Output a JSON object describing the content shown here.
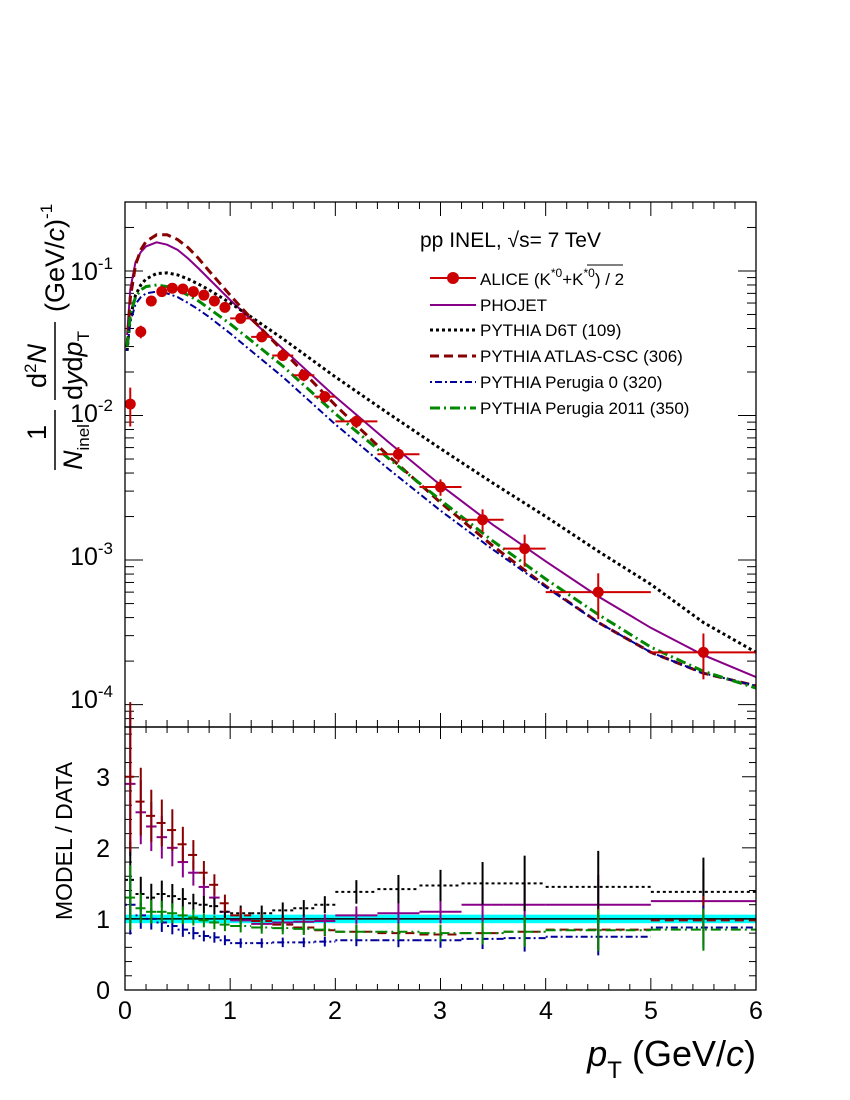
{
  "chart_data": [
    {
      "type": "scatter",
      "panel": "spectrum",
      "y_scale": "log",
      "xlim": [
        0,
        6
      ],
      "ylim": [
        7e-05,
        0.3
      ],
      "annotation": "pp INEL, √s= 7 TeV",
      "ylabel": "1/N_inel d²N/(dy dp_T) (GeV/c)^-1",
      "y_ticks": [
        {
          "label": "10",
          "exp": "-1",
          "value": 0.1
        },
        {
          "label": "10",
          "exp": "-2",
          "value": 0.01
        },
        {
          "label": "10",
          "exp": "-3",
          "value": 0.001
        },
        {
          "label": "10",
          "exp": "-4",
          "value": 0.0001
        }
      ],
      "data": {
        "name": "ALICE (K*0+K*0bar) / 2",
        "color": "#cc0000",
        "x": [
          0.05,
          0.15,
          0.25,
          0.35,
          0.45,
          0.55,
          0.65,
          0.75,
          0.85,
          0.95,
          1.1,
          1.3,
          1.5,
          1.7,
          1.9,
          2.2,
          2.6,
          3.0,
          3.4,
          3.8,
          4.5,
          5.5
        ],
        "xerr": [
          0.05,
          0.05,
          0.05,
          0.05,
          0.05,
          0.05,
          0.05,
          0.05,
          0.05,
          0.05,
          0.1,
          0.1,
          0.1,
          0.1,
          0.1,
          0.2,
          0.2,
          0.2,
          0.2,
          0.2,
          0.5,
          0.5
        ],
        "y": [
          0.012,
          0.038,
          0.062,
          0.072,
          0.076,
          0.075,
          0.072,
          0.068,
          0.062,
          0.056,
          0.047,
          0.035,
          0.026,
          0.019,
          0.0135,
          0.0091,
          0.0054,
          0.0032,
          0.0019,
          0.0012,
          0.0006,
          0.00023
        ],
        "yerr_rel": [
          0.3,
          0.1,
          0.08,
          0.07,
          0.07,
          0.07,
          0.07,
          0.07,
          0.07,
          0.07,
          0.08,
          0.08,
          0.08,
          0.09,
          0.09,
          0.1,
          0.12,
          0.13,
          0.18,
          0.25,
          0.35,
          0.35
        ]
      },
      "series": [
        {
          "name": "PHOJET",
          "color": "#880088",
          "dash": "none",
          "width": 2,
          "x": [
            0.02,
            0.05,
            0.1,
            0.15,
            0.2,
            0.3,
            0.4,
            0.5,
            0.6,
            0.7,
            0.8,
            1.0,
            1.2,
            1.5,
            2.0,
            2.5,
            3.0,
            3.5,
            4.0,
            4.5,
            5.0,
            5.5,
            6.0
          ],
          "y": [
            0.036,
            0.075,
            0.115,
            0.135,
            0.148,
            0.158,
            0.152,
            0.14,
            0.122,
            0.104,
            0.088,
            0.063,
            0.046,
            0.029,
            0.0135,
            0.0066,
            0.0033,
            0.00175,
            0.00098,
            0.00056,
            0.00034,
            0.00022,
            0.000155
          ]
        },
        {
          "name": "PYTHIA D6T (109)",
          "color": "#000000",
          "dash": "3,3",
          "width": 3,
          "x": [
            0.02,
            0.05,
            0.1,
            0.15,
            0.2,
            0.3,
            0.4,
            0.5,
            0.6,
            0.7,
            0.8,
            1.0,
            1.2,
            1.5,
            2.0,
            2.5,
            3.0,
            3.5,
            4.0,
            4.5,
            5.0,
            5.5,
            6.0
          ],
          "y": [
            0.028,
            0.048,
            0.068,
            0.08,
            0.088,
            0.096,
            0.097,
            0.094,
            0.088,
            0.081,
            0.074,
            0.06,
            0.048,
            0.034,
            0.0185,
            0.0104,
            0.0059,
            0.0034,
            0.002,
            0.00115,
            0.00068,
            0.00037,
            0.00023
          ]
        },
        {
          "name": "PYTHIA ATLAS-CSC (306)",
          "color": "#880000",
          "dash": "9,5",
          "width": 3,
          "x": [
            0.02,
            0.05,
            0.1,
            0.15,
            0.2,
            0.3,
            0.4,
            0.5,
            0.6,
            0.7,
            0.8,
            1.0,
            1.2,
            1.5,
            2.0,
            2.5,
            3.0,
            3.5,
            4.0,
            4.5,
            5.0,
            5.5,
            6.0
          ],
          "y": [
            0.03,
            0.065,
            0.11,
            0.14,
            0.16,
            0.178,
            0.178,
            0.165,
            0.145,
            0.122,
            0.1,
            0.068,
            0.047,
            0.028,
            0.0118,
            0.0053,
            0.0025,
            0.00125,
            0.00066,
            0.00037,
            0.00023,
            0.000165,
            0.000135
          ]
        },
        {
          "name": "PYTHIA Perugia 0 (320)",
          "color": "#000099",
          "dash": "2,3,7,3",
          "width": 2,
          "x": [
            0.02,
            0.05,
            0.1,
            0.15,
            0.2,
            0.3,
            0.4,
            0.5,
            0.6,
            0.7,
            0.8,
            1.0,
            1.2,
            1.5,
            2.0,
            2.5,
            3.0,
            3.5,
            4.0,
            4.5,
            5.0,
            5.5,
            6.0
          ],
          "y": [
            0.028,
            0.044,
            0.059,
            0.066,
            0.07,
            0.072,
            0.07,
            0.066,
            0.06,
            0.054,
            0.048,
            0.037,
            0.028,
            0.0185,
            0.0087,
            0.0043,
            0.0022,
            0.00118,
            0.00065,
            0.00037,
            0.00023,
            0.000165,
            0.000135
          ]
        },
        {
          "name": "PYTHIA Perugia 2011 (350)",
          "color": "#008800",
          "dash": "10,4,2,4",
          "width": 3,
          "x": [
            0.02,
            0.05,
            0.1,
            0.15,
            0.2,
            0.3,
            0.4,
            0.5,
            0.6,
            0.7,
            0.8,
            1.0,
            1.2,
            1.5,
            2.0,
            2.5,
            3.0,
            3.5,
            4.0,
            4.5,
            5.0,
            5.5,
            6.0
          ],
          "y": [
            0.03,
            0.05,
            0.066,
            0.074,
            0.078,
            0.08,
            0.078,
            0.074,
            0.068,
            0.062,
            0.055,
            0.043,
            0.033,
            0.022,
            0.0103,
            0.0051,
            0.0026,
            0.00135,
            0.00074,
            0.00042,
            0.00025,
            0.00017,
            0.00013
          ]
        }
      ]
    },
    {
      "type": "line",
      "panel": "ratio",
      "ylabel": "MODEL / DATA",
      "xlabel": "p_T (GeV/c)",
      "xlim": [
        0,
        6
      ],
      "ylim": [
        0,
        3.7
      ],
      "x_ticks": [
        0,
        1,
        2,
        3,
        4,
        5,
        6
      ],
      "y_ticks": [
        0,
        1,
        2,
        3
      ],
      "reference_band": {
        "value": 1.0,
        "half_width": 0.06,
        "color": "#00ffff"
      },
      "bin_x": [
        0.05,
        0.15,
        0.25,
        0.35,
        0.45,
        0.55,
        0.65,
        0.75,
        0.85,
        0.95,
        1.1,
        1.3,
        1.5,
        1.7,
        1.9,
        2.2,
        2.6,
        3.0,
        3.4,
        3.8,
        4.5,
        5.5
      ],
      "bin_halfwidth": [
        0.05,
        0.05,
        0.05,
        0.05,
        0.05,
        0.05,
        0.05,
        0.05,
        0.05,
        0.05,
        0.1,
        0.1,
        0.1,
        0.1,
        0.1,
        0.2,
        0.2,
        0.2,
        0.2,
        0.2,
        0.5,
        0.5
      ],
      "series": [
        {
          "name": "PHOJET",
          "color": "#880088",
          "dash": "none",
          "values": [
            2.9,
            2.5,
            2.3,
            2.15,
            2.0,
            1.8,
            1.65,
            1.45,
            1.3,
            1.1,
            0.98,
            0.93,
            0.95,
            0.96,
            0.97,
            1.05,
            1.08,
            1.1,
            1.2,
            1.2,
            1.2,
            1.25
          ],
          "err_rel": [
            0.35,
            0.18,
            0.15,
            0.14,
            0.13,
            0.12,
            0.11,
            0.1,
            0.1,
            0.1,
            0.1,
            0.1,
            0.1,
            0.1,
            0.1,
            0.12,
            0.14,
            0.15,
            0.2,
            0.26,
            0.35,
            0.35
          ]
        },
        {
          "name": "PYTHIA D6T (109)",
          "color": "#000000",
          "dash": "3,3",
          "values": [
            1.55,
            1.35,
            1.3,
            1.35,
            1.32,
            1.28,
            1.22,
            1.2,
            1.18,
            1.1,
            1.08,
            1.08,
            1.12,
            1.15,
            1.2,
            1.38,
            1.42,
            1.47,
            1.5,
            1.5,
            1.45,
            1.38
          ],
          "err_rel": [
            0.35,
            0.18,
            0.15,
            0.14,
            0.13,
            0.12,
            0.11,
            0.1,
            0.1,
            0.1,
            0.1,
            0.1,
            0.1,
            0.1,
            0.1,
            0.12,
            0.14,
            0.15,
            0.2,
            0.26,
            0.35,
            0.35
          ]
        },
        {
          "name": "PYTHIA ATLAS-CSC (306)",
          "color": "#880000",
          "dash": "9,5",
          "values": [
            3.0,
            2.65,
            2.45,
            2.35,
            2.25,
            2.05,
            1.9,
            1.65,
            1.48,
            1.22,
            1.05,
            0.97,
            0.92,
            0.88,
            0.84,
            0.82,
            0.8,
            0.78,
            0.8,
            0.82,
            0.85,
            0.98
          ],
          "err_rel": [
            0.35,
            0.18,
            0.15,
            0.14,
            0.13,
            0.12,
            0.11,
            0.1,
            0.1,
            0.1,
            0.1,
            0.1,
            0.1,
            0.1,
            0.1,
            0.12,
            0.14,
            0.15,
            0.2,
            0.26,
            0.35,
            0.35
          ]
        },
        {
          "name": "PYTHIA Perugia 0 (320)",
          "color": "#000099",
          "dash": "2,3,7,3",
          "values": [
            1.2,
            1.05,
            1.0,
            0.95,
            0.9,
            0.85,
            0.8,
            0.76,
            0.74,
            0.7,
            0.66,
            0.66,
            0.67,
            0.67,
            0.68,
            0.7,
            0.7,
            0.7,
            0.72,
            0.73,
            0.75,
            0.88
          ],
          "err_rel": [
            0.35,
            0.18,
            0.15,
            0.14,
            0.13,
            0.12,
            0.11,
            0.1,
            0.1,
            0.1,
            0.1,
            0.1,
            0.1,
            0.1,
            0.1,
            0.12,
            0.14,
            0.15,
            0.2,
            0.26,
            0.35,
            0.35
          ]
        },
        {
          "name": "PYTHIA Perugia 2011 (350)",
          "color": "#008800",
          "dash": "10,4,2,4",
          "values": [
            1.3,
            1.15,
            1.1,
            1.1,
            1.08,
            1.05,
            1.02,
            0.98,
            0.95,
            0.92,
            0.9,
            0.88,
            0.87,
            0.86,
            0.85,
            0.82,
            0.82,
            0.8,
            0.8,
            0.82,
            0.84,
            0.85
          ],
          "err_rel": [
            0.35,
            0.18,
            0.15,
            0.14,
            0.13,
            0.12,
            0.11,
            0.1,
            0.1,
            0.1,
            0.1,
            0.1,
            0.1,
            0.1,
            0.1,
            0.12,
            0.14,
            0.15,
            0.2,
            0.26,
            0.35,
            0.35
          ]
        }
      ]
    }
  ],
  "text": {
    "annotation": "pp INEL, √s= 7 TeV",
    "legend_alice_prefix": "ALICE (K",
    "legend_alice_sup1": "*0",
    "legend_alice_plus": "+",
    "legend_alice_kbar": "K",
    "legend_alice_sup2": "*0",
    "legend_alice_suffix": ") / 2",
    "legend_phojet": "PHOJET",
    "legend_d6t": "PYTHIA D6T (109)",
    "legend_atlas": "PYTHIA ATLAS-CSC (306)",
    "legend_perugia0": "PYTHIA Perugia 0 (320)",
    "legend_perugia2011": "PYTHIA Perugia 2011 (350)",
    "ylabel_one": "1",
    "ylabel_N": "N",
    "ylabel_inel": "inel",
    "ylabel_d": "d",
    "ylabel_sq": "2",
    "ylabel_N2": "N",
    "ylabel_dy": "d",
    "ylabel_y": "y",
    "ylabel_dp": "d",
    "ylabel_p": "p",
    "ylabel_T": "T",
    "ylabel_units": "(GeV/",
    "ylabel_c": "c",
    "ylabel_close": ")",
    "ylabel_exp": "-1",
    "ratio_ylabel": "MODEL / DATA",
    "xlabel_p": "p",
    "xlabel_T": "T",
    "xlabel_units": " (GeV/",
    "xlabel_c": "c",
    "xlabel_close": ")",
    "ytick_base": "10",
    "ytick_exp_1": "-1",
    "ytick_exp_2": "-2",
    "ytick_exp_3": "-3",
    "ytick_exp_4": "-4",
    "xtick_0": "0",
    "xtick_1": "1",
    "xtick_2": "2",
    "xtick_3": "3",
    "xtick_4": "4",
    "xtick_5": "5",
    "xtick_6": "6",
    "rtick_0": "0",
    "rtick_1": "1",
    "rtick_2": "2",
    "rtick_3": "3"
  }
}
